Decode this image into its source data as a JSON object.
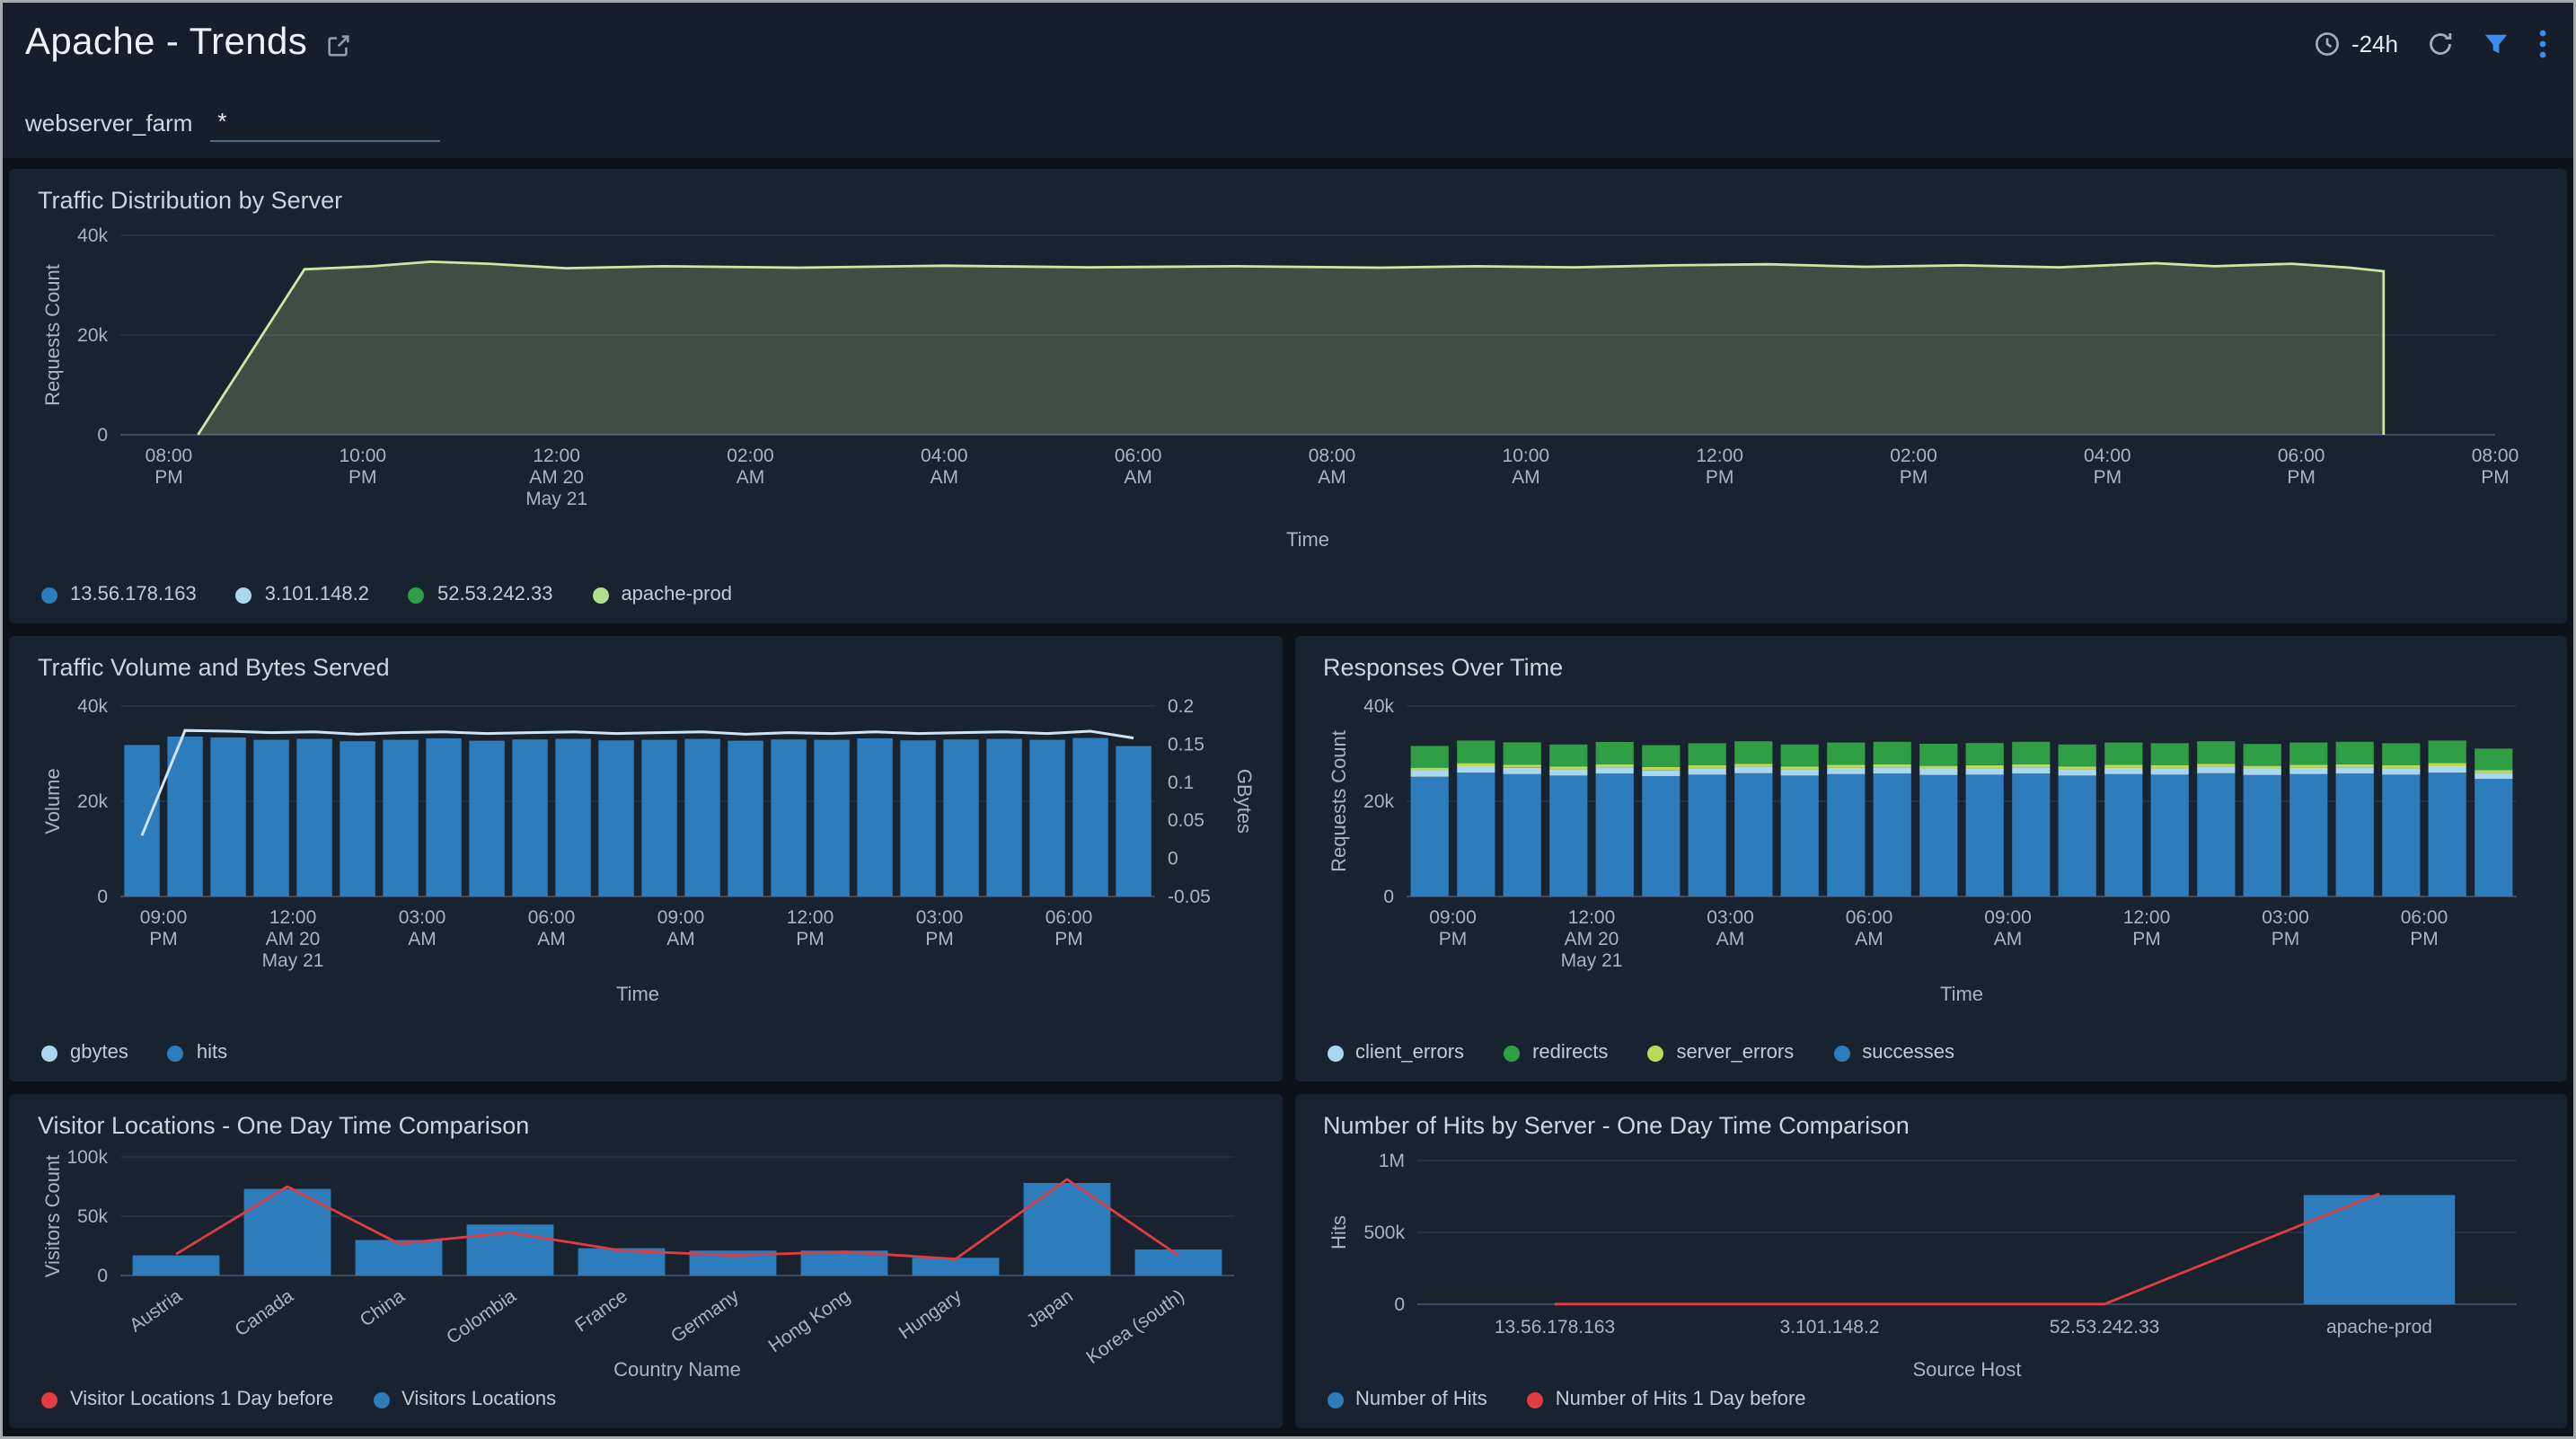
{
  "header": {
    "title": "Apache - Trends",
    "time_range": "-24h"
  },
  "filter": {
    "label": "webserver_farm",
    "value": "*"
  },
  "theme": {
    "accent_blue": "#3a8df0",
    "bar_blue": "#2d7dbd",
    "light_blue": "#a9d7f0",
    "green": "#2f9e44",
    "light_green": "#b2df8a",
    "yellow_green": "#b8da57",
    "red": "#e23b41",
    "panel_bg": "#19222f",
    "page_bg": "#0d1219",
    "header_bg": "#161e2b"
  },
  "chart_data": [
    {
      "type": "area",
      "title": "Traffic Distribution by Server",
      "ylabel": "Requests Count",
      "xlabel": "Time",
      "ylim": [
        0,
        40000
      ],
      "yticks": [
        {
          "v": 0,
          "label": "0"
        },
        {
          "v": 20000,
          "label": "20k"
        },
        {
          "v": 40000,
          "label": "40k"
        }
      ],
      "x_span_hours": 24.5,
      "xticks": [
        {
          "t": 0.5,
          "lines": [
            "08:00",
            "PM"
          ]
        },
        {
          "t": 2.5,
          "lines": [
            "10:00",
            "PM"
          ]
        },
        {
          "t": 4.5,
          "lines": [
            "12:00",
            "AM 20",
            "May 21"
          ]
        },
        {
          "t": 6.5,
          "lines": [
            "02:00",
            "AM"
          ]
        },
        {
          "t": 8.5,
          "lines": [
            "04:00",
            "AM"
          ]
        },
        {
          "t": 10.5,
          "lines": [
            "06:00",
            "AM"
          ]
        },
        {
          "t": 12.5,
          "lines": [
            "08:00",
            "AM"
          ]
        },
        {
          "t": 14.5,
          "lines": [
            "10:00",
            "AM"
          ]
        },
        {
          "t": 16.5,
          "lines": [
            "12:00",
            "PM"
          ]
        },
        {
          "t": 18.5,
          "lines": [
            "02:00",
            "PM"
          ]
        },
        {
          "t": 20.5,
          "lines": [
            "04:00",
            "PM"
          ]
        },
        {
          "t": 22.5,
          "lines": [
            "06:00",
            "PM"
          ]
        },
        {
          "t": 24.5,
          "lines": [
            "08:00",
            "PM"
          ]
        }
      ],
      "points": [
        [
          0.8,
          0
        ],
        [
          1.9,
          33200
        ],
        [
          2.6,
          33800
        ],
        [
          3.2,
          34700
        ],
        [
          3.8,
          34300
        ],
        [
          4.6,
          33400
        ],
        [
          5.6,
          33800
        ],
        [
          7,
          33500
        ],
        [
          8.5,
          33900
        ],
        [
          10,
          33600
        ],
        [
          11.5,
          33800
        ],
        [
          13,
          33500
        ],
        [
          14,
          33800
        ],
        [
          15,
          33600
        ],
        [
          16,
          34000
        ],
        [
          17,
          34200
        ],
        [
          18,
          33700
        ],
        [
          19,
          34000
        ],
        [
          20,
          33600
        ],
        [
          21,
          34400
        ],
        [
          21.6,
          33800
        ],
        [
          22.4,
          34300
        ],
        [
          23,
          33500
        ],
        [
          23.35,
          32800
        ],
        [
          23.35,
          0
        ]
      ],
      "fill": "#b2df8a",
      "fill_opacity": 0.24,
      "stroke": "#c9e8a6",
      "legend": [
        {
          "label": "13.56.178.163",
          "color": "#2d7dbd"
        },
        {
          "label": "3.101.148.2",
          "color": "#a9d7f0"
        },
        {
          "label": "52.53.242.33",
          "color": "#2f9e44"
        },
        {
          "label": "apache-prod",
          "color": "#b2df8a"
        }
      ]
    },
    {
      "type": "bars",
      "title": "Traffic Volume and Bytes Served",
      "ylabel": "Volume",
      "y2label": "GBytes",
      "xlabel": "Time",
      "ylim": [
        0,
        40000
      ],
      "yticks": [
        {
          "v": 0,
          "label": "0"
        },
        {
          "v": 20000,
          "label": "20k"
        },
        {
          "v": 40000,
          "label": "40k"
        }
      ],
      "y2lim": [
        -0.05,
        0.2
      ],
      "y2ticks": [
        {
          "v": -0.05,
          "label": "-0.05"
        },
        {
          "v": 0,
          "label": "0"
        },
        {
          "v": 0.05,
          "label": "0.05"
        },
        {
          "v": 0.1,
          "label": "0.1"
        },
        {
          "v": 0.15,
          "label": "0.15"
        },
        {
          "v": 0.2,
          "label": "0.2"
        }
      ],
      "bar_color": "#2d7dbd",
      "bars": [
        31800,
        33600,
        33400,
        32900,
        33100,
        32600,
        32900,
        33200,
        32700,
        33000,
        33100,
        32800,
        32900,
        33100,
        32700,
        33000,
        32900,
        33200,
        32800,
        33000,
        33100,
        32900,
        33300,
        31600
      ],
      "line": {
        "axis": "y2",
        "color": "#cfe4f5",
        "values": [
          0.03,
          0.168,
          0.167,
          0.165,
          0.166,
          0.163,
          0.165,
          0.166,
          0.164,
          0.165,
          0.166,
          0.164,
          0.165,
          0.166,
          0.163,
          0.165,
          0.164,
          0.166,
          0.164,
          0.165,
          0.166,
          0.164,
          0.167,
          0.158
        ]
      },
      "xticks": [
        {
          "slot": 1,
          "lines": [
            "09:00",
            "PM"
          ]
        },
        {
          "slot": 4,
          "lines": [
            "12:00",
            "AM 20",
            "May 21"
          ]
        },
        {
          "slot": 7,
          "lines": [
            "03:00",
            "AM"
          ]
        },
        {
          "slot": 10,
          "lines": [
            "06:00",
            "AM"
          ]
        },
        {
          "slot": 13,
          "lines": [
            "09:00",
            "AM"
          ]
        },
        {
          "slot": 16,
          "lines": [
            "12:00",
            "PM"
          ]
        },
        {
          "slot": 19,
          "lines": [
            "03:00",
            "PM"
          ]
        },
        {
          "slot": 22,
          "lines": [
            "06:00",
            "PM"
          ]
        }
      ],
      "legend": [
        {
          "label": "gbytes",
          "color": "#a9d7f0"
        },
        {
          "label": "hits",
          "color": "#2d7dbd"
        }
      ]
    },
    {
      "type": "stacked",
      "title": "Responses Over Time",
      "ylabel": "Requests Count",
      "xlabel": "Time",
      "ylim": [
        0,
        40000
      ],
      "yticks": [
        {
          "v": 0,
          "label": "0"
        },
        {
          "v": 20000,
          "label": "20k"
        },
        {
          "v": 40000,
          "label": "40k"
        }
      ],
      "series": [
        {
          "name": "successes",
          "color": "#2d7dbd",
          "values": [
            25100,
            26000,
            25700,
            25400,
            25800,
            25300,
            25600,
            25900,
            25400,
            25700,
            25800,
            25500,
            25600,
            25800,
            25400,
            25700,
            25600,
            25900,
            25500,
            25700,
            25800,
            25600,
            26000,
            24700
          ]
        },
        {
          "name": "client_errors",
          "color": "#a9d7f0",
          "values": [
            1300,
            1350,
            1330,
            1290,
            1320,
            1280,
            1310,
            1340,
            1290,
            1320,
            1330,
            1300,
            1310,
            1330,
            1290,
            1320,
            1310,
            1340,
            1300,
            1320,
            1330,
            1310,
            1350,
            1260
          ]
        },
        {
          "name": "server_errors",
          "color": "#b8da57",
          "values": [
            640,
            660,
            650,
            630,
            650,
            620,
            640,
            660,
            630,
            650,
            660,
            640,
            650,
            660,
            630,
            650,
            640,
            660,
            630,
            650,
            660,
            640,
            670,
            610
          ]
        },
        {
          "name": "redirects",
          "color": "#2f9e44",
          "values": [
            4600,
            4750,
            4700,
            4620,
            4680,
            4580,
            4650,
            4720,
            4600,
            4670,
            4700,
            4630,
            4650,
            4700,
            4590,
            4670,
            4640,
            4720,
            4610,
            4670,
            4690,
            4640,
            4750,
            4480
          ]
        }
      ],
      "xticks": [
        {
          "slot": 1,
          "lines": [
            "09:00",
            "PM"
          ]
        },
        {
          "slot": 4,
          "lines": [
            "12:00",
            "AM 20",
            "May 21"
          ]
        },
        {
          "slot": 7,
          "lines": [
            "03:00",
            "AM"
          ]
        },
        {
          "slot": 10,
          "lines": [
            "06:00",
            "AM"
          ]
        },
        {
          "slot": 13,
          "lines": [
            "09:00",
            "AM"
          ]
        },
        {
          "slot": 16,
          "lines": [
            "12:00",
            "PM"
          ]
        },
        {
          "slot": 19,
          "lines": [
            "03:00",
            "PM"
          ]
        },
        {
          "slot": 22,
          "lines": [
            "06:00",
            "PM"
          ]
        }
      ],
      "legend": [
        {
          "label": "client_errors",
          "color": "#a9d7f0"
        },
        {
          "label": "redirects",
          "color": "#2f9e44"
        },
        {
          "label": "server_errors",
          "color": "#b8da57"
        },
        {
          "label": "successes",
          "color": "#2d7dbd"
        }
      ]
    },
    {
      "type": "catbars",
      "title": "Visitor Locations - One Day Time Comparison",
      "ylabel": "Visitors Count",
      "xlabel": "Country Name",
      "ylim": [
        0,
        100000
      ],
      "yticks": [
        {
          "v": 0,
          "label": "0"
        },
        {
          "v": 50000,
          "label": "50k"
        },
        {
          "v": 100000,
          "label": "100k"
        }
      ],
      "categories": [
        "Austria",
        "Canada",
        "China",
        "Colombia",
        "France",
        "Germany",
        "Hong Kong",
        "Hungary",
        "Japan",
        "Korea (south)"
      ],
      "bars": [
        17000,
        73000,
        30000,
        43000,
        23000,
        21000,
        21000,
        15000,
        78000,
        22000
      ],
      "bar_color": "#2d7dbd",
      "bar_frac": 0.78,
      "tick_rotation": -35,
      "line": {
        "color": "#e23b41",
        "values": [
          18000,
          75000,
          27000,
          36000,
          21000,
          17000,
          20000,
          14000,
          81000,
          17000
        ]
      },
      "legend": [
        {
          "label": "Visitor Locations 1 Day before",
          "color": "#e23b41"
        },
        {
          "label": "Visitors Locations",
          "color": "#2d7dbd"
        }
      ]
    },
    {
      "type": "catbars",
      "title": "Number of Hits by Server - One Day Time Comparison",
      "ylabel": "Hits",
      "xlabel": "Source Host",
      "ylim": [
        0,
        1000000
      ],
      "yticks": [
        {
          "v": 0,
          "label": "0"
        },
        {
          "v": 500000,
          "label": "500k"
        },
        {
          "v": 1000000,
          "label": "1M"
        }
      ],
      "categories": [
        "13.56.178.163",
        "3.101.148.2",
        "52.53.242.33",
        "apache-prod"
      ],
      "bars": [
        0,
        0,
        0,
        760000
      ],
      "bar_color": "#2d7dbd",
      "bar_frac": 0.55,
      "line": {
        "color": "#e23b41",
        "values": [
          1500,
          1500,
          1500,
          770000
        ]
      },
      "legend": [
        {
          "label": "Number of Hits",
          "color": "#2d7dbd"
        },
        {
          "label": "Number of Hits 1 Day before",
          "color": "#e23b41"
        }
      ]
    }
  ]
}
